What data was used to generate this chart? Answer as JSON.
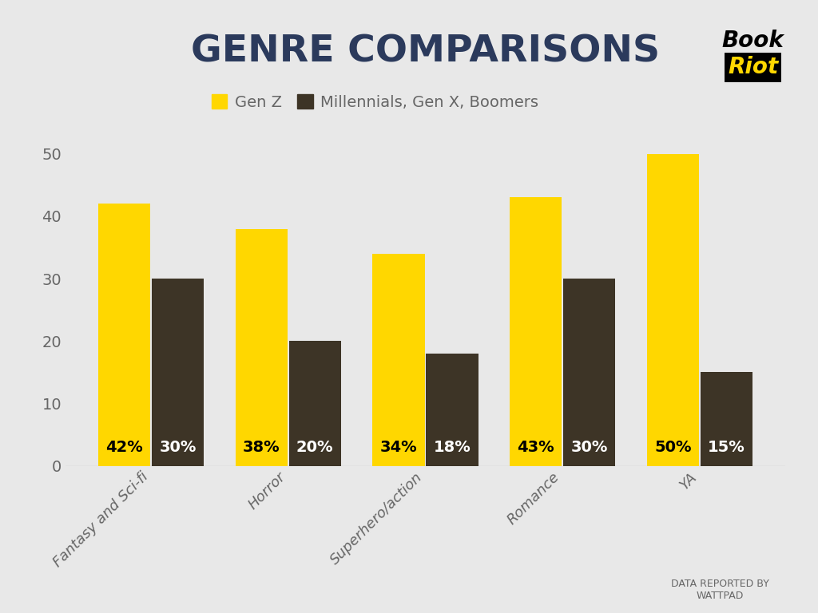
{
  "title": "GENRE COMPARISONS",
  "categories": [
    "Fantasy and Sci-fi",
    "Horror",
    "Superhero/action",
    "Romance",
    "YA"
  ],
  "gen_z_values": [
    42,
    38,
    34,
    43,
    50
  ],
  "other_values": [
    30,
    20,
    18,
    30,
    15
  ],
  "gen_z_labels": [
    "42%",
    "38%",
    "34%",
    "43%",
    "50%"
  ],
  "other_labels": [
    "30%",
    "20%",
    "18%",
    "30%",
    "15%"
  ],
  "gen_z_color": "#FFD700",
  "other_color": "#3D3426",
  "background_color": "#E8E8E8",
  "title_color": "#2B3A5C",
  "legend_label_genz": "Gen Z",
  "legend_label_other": "Millennials, Gen X, Boomers",
  "ylim_max": 55,
  "yticks": [
    0,
    10,
    20,
    30,
    40,
    50
  ],
  "bar_label_fontsize": 14,
  "tick_label_color": "#666666",
  "footnote": "DATA REPORTED BY\nWATTPAD",
  "logo_color": "#FFD700",
  "bar_width": 0.38,
  "bar_gap": 0.01
}
